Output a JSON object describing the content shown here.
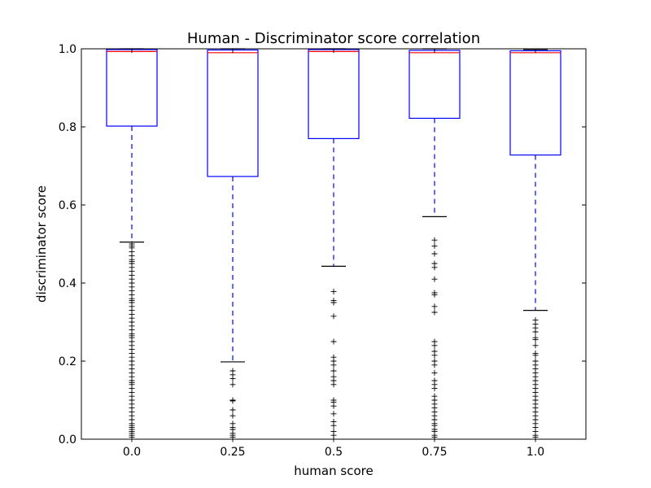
{
  "chart_data": {
    "type": "box",
    "title": "Human - Discriminator score correlation",
    "xlabel": "human score",
    "ylabel": "discriminator score",
    "ylim": [
      0.0,
      1.0
    ],
    "yticks": [
      "0.0",
      "0.2",
      "0.4",
      "0.6",
      "0.8",
      "1.0"
    ],
    "categories": [
      "0.0",
      "0.25",
      "0.5",
      "0.75",
      "1.0"
    ],
    "boxes": [
      {
        "category": "0.0",
        "whisker_low": 0.505,
        "q1": 0.802,
        "median": 0.993,
        "q3": 0.998,
        "whisker_high": 1.0,
        "outliers": [
          0.5,
          0.495,
          0.49,
          0.48,
          0.47,
          0.46,
          0.455,
          0.45,
          0.44,
          0.43,
          0.42,
          0.41,
          0.4,
          0.39,
          0.38,
          0.37,
          0.36,
          0.355,
          0.35,
          0.34,
          0.33,
          0.32,
          0.31,
          0.3,
          0.29,
          0.28,
          0.27,
          0.265,
          0.26,
          0.25,
          0.24,
          0.23,
          0.22,
          0.21,
          0.2,
          0.19,
          0.18,
          0.17,
          0.16,
          0.15,
          0.145,
          0.14,
          0.13,
          0.12,
          0.11,
          0.1,
          0.09,
          0.08,
          0.07,
          0.06,
          0.05,
          0.04,
          0.035,
          0.03,
          0.025,
          0.02,
          0.015,
          0.01,
          0.005,
          0.0
        ]
      },
      {
        "category": "0.25",
        "whisker_low": 0.198,
        "q1": 0.673,
        "median": 0.99,
        "q3": 0.997,
        "whisker_high": 1.0,
        "outliers": [
          0.175,
          0.165,
          0.155,
          0.14,
          0.1,
          0.098,
          0.075,
          0.06,
          0.04,
          0.03,
          0.025,
          0.015,
          0.01,
          0.005,
          0.0
        ]
      },
      {
        "category": "0.5",
        "whisker_low": 0.443,
        "q1": 0.77,
        "median": 0.993,
        "q3": 0.998,
        "whisker_high": 1.0,
        "outliers": [
          0.378,
          0.355,
          0.35,
          0.315,
          0.25,
          0.21,
          0.2,
          0.19,
          0.175,
          0.16,
          0.15,
          0.14,
          0.1,
          0.095,
          0.085,
          0.065,
          0.045,
          0.035,
          0.02,
          0.01,
          0.0
        ]
      },
      {
        "category": "0.75",
        "whisker_low": 0.57,
        "q1": 0.822,
        "median": 0.99,
        "q3": 0.996,
        "whisker_high": 1.0,
        "outliers": [
          0.51,
          0.495,
          0.475,
          0.45,
          0.44,
          0.41,
          0.375,
          0.37,
          0.34,
          0.325,
          0.25,
          0.24,
          0.225,
          0.215,
          0.2,
          0.19,
          0.17,
          0.15,
          0.14,
          0.13,
          0.11,
          0.1,
          0.09,
          0.08,
          0.07,
          0.06,
          0.05,
          0.04,
          0.035,
          0.025,
          0.02,
          0.01,
          0.005,
          0.0
        ]
      },
      {
        "category": "1.0",
        "whisker_low": 0.33,
        "q1": 0.728,
        "median": 0.99,
        "q3": 0.995,
        "whisker_high": 0.998,
        "outliers": [
          0.305,
          0.295,
          0.285,
          0.275,
          0.26,
          0.255,
          0.24,
          0.22,
          0.215,
          0.2,
          0.19,
          0.18,
          0.17,
          0.16,
          0.15,
          0.14,
          0.13,
          0.12,
          0.11,
          0.1,
          0.09,
          0.08,
          0.07,
          0.06,
          0.05,
          0.04,
          0.03,
          0.02,
          0.01,
          0.005,
          0.0
        ]
      }
    ],
    "colors": {
      "box": "#0000ff",
      "median": "#ff0000",
      "whisker": "#0000ff",
      "cap": "#000000",
      "outlier": "#000000"
    },
    "grid": false
  }
}
